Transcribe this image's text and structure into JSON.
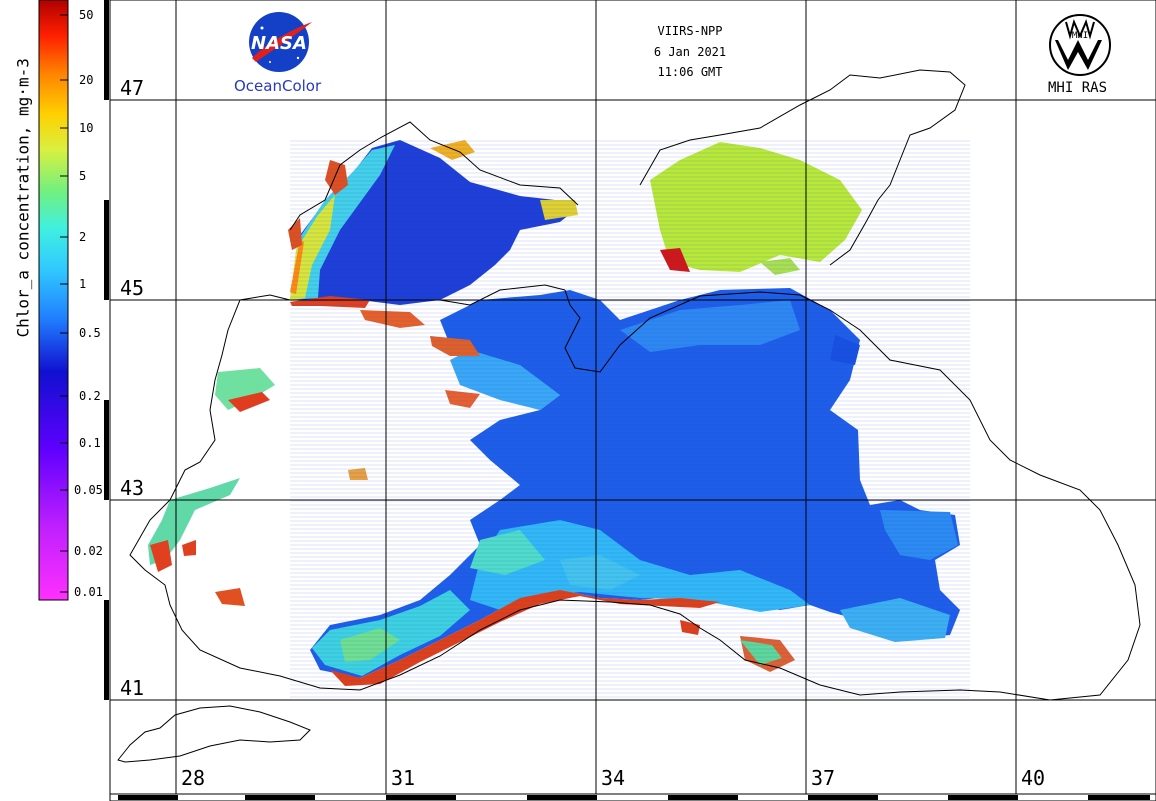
{
  "header": {
    "satellite": "VIIRS-NPP",
    "date": "6 Jan 2021",
    "time": "11:06 GMT"
  },
  "logos": {
    "nasa_caption": "OceanColor",
    "nasa_logo_text": "NASA",
    "mhi_caption": "MHI RAS",
    "mhi_logo_text": "MHI"
  },
  "colorbar": {
    "title": "Chlor_a concentration, mg·m-3",
    "scale": "log",
    "range": [
      0.01,
      50
    ],
    "ticks": [
      {
        "label": "50",
        "value": 50
      },
      {
        "label": "20",
        "value": 20
      },
      {
        "label": "10",
        "value": 10
      },
      {
        "label": "5",
        "value": 5
      },
      {
        "label": "2",
        "value": 2
      },
      {
        "label": "1",
        "value": 1
      },
      {
        "label": "0.5",
        "value": 0.5
      },
      {
        "label": "0.2",
        "value": 0.2
      },
      {
        "label": "0.1",
        "value": 0.1
      },
      {
        "label": "0.05",
        "value": 0.05
      },
      {
        "label": "0.02",
        "value": 0.02
      },
      {
        "label": "0.01",
        "value": 0.01
      }
    ],
    "colors": [
      "#ff30ff",
      "#9000ff",
      "#1010d0",
      "#2080ff",
      "#40d8ff",
      "#60e8a0",
      "#d8f040",
      "#ffd000",
      "#ff8000",
      "#ff2000",
      "#b00000"
    ]
  },
  "grid": {
    "latitudes": [
      "47",
      "45",
      "43",
      "41"
    ],
    "longitudes": [
      "28",
      "31",
      "34",
      "37",
      "40"
    ]
  }
}
